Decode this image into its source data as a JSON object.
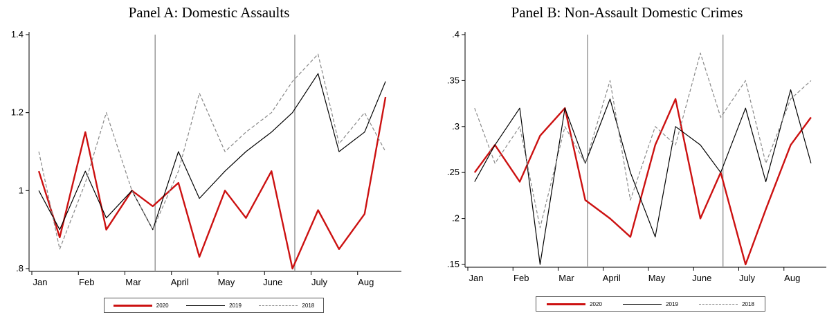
{
  "chart_data": [
    {
      "type": "line",
      "title": "Panel A: Domestic Assaults",
      "xlabel": "",
      "ylabel": "",
      "x_ticks": [
        "Jan",
        "Feb",
        "Mar",
        "April",
        "May",
        "June",
        "July",
        "Aug"
      ],
      "y_ticks": [
        "1.4",
        "1.2",
        "1",
        ".8"
      ],
      "ylim": [
        0.8,
        1.4
      ],
      "vertical_lines": [
        "Mar",
        "June"
      ],
      "legend_placement": "bottom",
      "series": [
        {
          "name": "2020",
          "color": "#cc1111",
          "style": "solid",
          "points": [
            [
              "Jan",
              1.05
            ],
            [
              "Jan",
              0.88
            ],
            [
              "Feb",
              1.15
            ],
            [
              "Feb",
              0.9
            ],
            [
              "Mar",
              1.0
            ],
            [
              "Mar",
              0.96
            ],
            [
              "April",
              1.02
            ],
            [
              "April",
              0.83
            ],
            [
              "May",
              1.0
            ],
            [
              "May",
              0.93
            ],
            [
              "June",
              1.05
            ],
            [
              "June",
              0.8
            ],
            [
              "July",
              0.95
            ],
            [
              "July",
              0.85
            ],
            [
              "Aug",
              0.94
            ],
            [
              "Aug",
              1.24
            ]
          ]
        },
        {
          "name": "2019",
          "color": "#000000",
          "style": "solid",
          "points": [
            [
              "Jan",
              1.0
            ],
            [
              "Jan",
              0.9
            ],
            [
              "Feb",
              1.05
            ],
            [
              "Feb",
              0.93
            ],
            [
              "Mar",
              1.0
            ],
            [
              "Mar",
              0.9
            ],
            [
              "April",
              1.1
            ],
            [
              "April",
              0.98
            ],
            [
              "May",
              1.05
            ],
            [
              "May",
              1.1
            ],
            [
              "June",
              1.15
            ],
            [
              "June",
              1.2
            ],
            [
              "July",
              1.3
            ],
            [
              "July",
              1.1
            ],
            [
              "Aug",
              1.15
            ],
            [
              "Aug",
              1.28
            ]
          ]
        },
        {
          "name": "2018",
          "color": "#888888",
          "style": "dashed",
          "points": [
            [
              "Jan",
              1.1
            ],
            [
              "Jan",
              0.85
            ],
            [
              "Feb",
              1.02
            ],
            [
              "Feb",
              1.2
            ],
            [
              "Mar",
              1.0
            ],
            [
              "Mar",
              0.9
            ],
            [
              "April",
              1.05
            ],
            [
              "April",
              1.25
            ],
            [
              "May",
              1.1
            ],
            [
              "May",
              1.15
            ],
            [
              "June",
              1.2
            ],
            [
              "June",
              1.28
            ],
            [
              "July",
              1.35
            ],
            [
              "July",
              1.12
            ],
            [
              "Aug",
              1.2
            ],
            [
              "Aug",
              1.1
            ]
          ]
        }
      ]
    },
    {
      "type": "line",
      "title": "Panel B: Non-Assault Domestic Crimes",
      "xlabel": "",
      "ylabel": "",
      "x_ticks": [
        "Jan",
        "Feb",
        "Mar",
        "April",
        "May",
        "June",
        "July",
        "Aug"
      ],
      "y_ticks": [
        ".4",
        ".35",
        ".3",
        ".25",
        ".2",
        ".15"
      ],
      "ylim": [
        0.15,
        0.4
      ],
      "vertical_lines": [
        "Mar",
        "June"
      ],
      "legend_placement": "bottom",
      "series": [
        {
          "name": "2020",
          "color": "#cc1111",
          "style": "solid",
          "points": [
            [
              "Jan",
              0.25
            ],
            [
              "Jan",
              0.28
            ],
            [
              "Feb",
              0.24
            ],
            [
              "Feb",
              0.29
            ],
            [
              "Mar",
              0.32
            ],
            [
              "Mar",
              0.22
            ],
            [
              "April",
              0.2
            ],
            [
              "April",
              0.18
            ],
            [
              "May",
              0.28
            ],
            [
              "May",
              0.33
            ],
            [
              "June",
              0.2
            ],
            [
              "June",
              0.25
            ],
            [
              "July",
              0.15
            ],
            [
              "July",
              0.21
            ],
            [
              "Aug",
              0.28
            ],
            [
              "Aug",
              0.31
            ]
          ]
        },
        {
          "name": "2019",
          "color": "#000000",
          "style": "solid",
          "points": [
            [
              "Jan",
              0.24
            ],
            [
              "Jan",
              0.28
            ],
            [
              "Feb",
              0.32
            ],
            [
              "Feb",
              0.15
            ],
            [
              "Mar",
              0.32
            ],
            [
              "Mar",
              0.26
            ],
            [
              "April",
              0.33
            ],
            [
              "April",
              0.25
            ],
            [
              "May",
              0.18
            ],
            [
              "May",
              0.3
            ],
            [
              "June",
              0.28
            ],
            [
              "June",
              0.25
            ],
            [
              "July",
              0.32
            ],
            [
              "July",
              0.24
            ],
            [
              "Aug",
              0.34
            ],
            [
              "Aug",
              0.26
            ]
          ]
        },
        {
          "name": "2018",
          "color": "#888888",
          "style": "dashed",
          "points": [
            [
              "Jan",
              0.32
            ],
            [
              "Jan",
              0.26
            ],
            [
              "Feb",
              0.3
            ],
            [
              "Feb",
              0.19
            ],
            [
              "Mar",
              0.3
            ],
            [
              "Mar",
              0.26
            ],
            [
              "April",
              0.35
            ],
            [
              "April",
              0.22
            ],
            [
              "May",
              0.3
            ],
            [
              "May",
              0.28
            ],
            [
              "June",
              0.38
            ],
            [
              "June",
              0.31
            ],
            [
              "July",
              0.35
            ],
            [
              "July",
              0.26
            ],
            [
              "Aug",
              0.33
            ],
            [
              "Aug",
              0.35
            ]
          ]
        }
      ]
    }
  ]
}
